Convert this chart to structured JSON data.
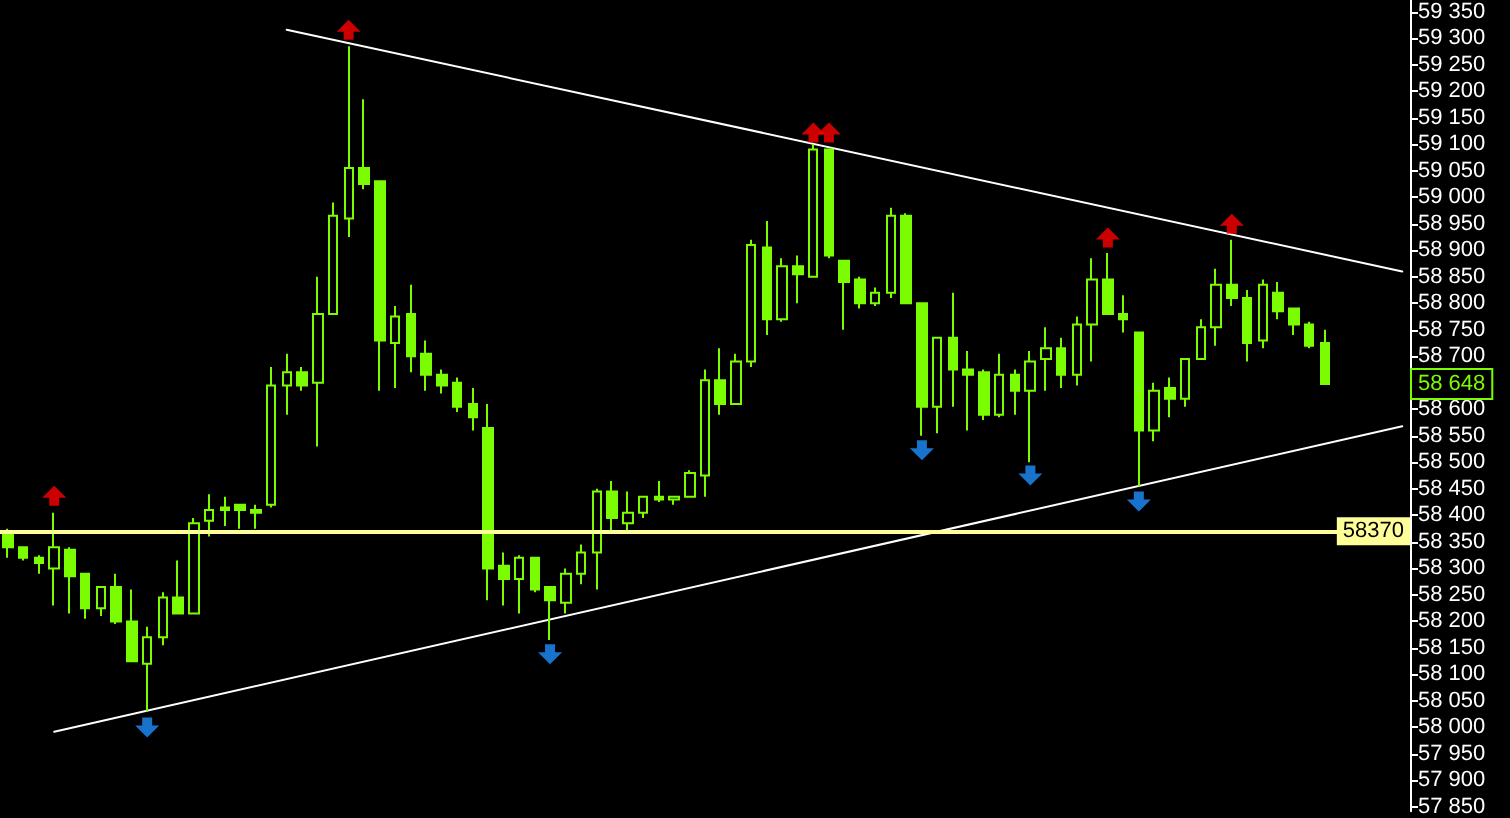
{
  "chart_data": {
    "type": "candlestick",
    "color": "#7cfc00",
    "categories": [
      null,
      null,
      null,
      null,
      null,
      null,
      null,
      null,
      null,
      null,
      null,
      null,
      null,
      null,
      null,
      null,
      null,
      null,
      null,
      null,
      null,
      null,
      null,
      null,
      null,
      null,
      null,
      null,
      null,
      null,
      null,
      null,
      null,
      null,
      null,
      null,
      null,
      null,
      null,
      null,
      null,
      null,
      null,
      null,
      null,
      null,
      null,
      null,
      null,
      null,
      null,
      null,
      null,
      null,
      null,
      null,
      null,
      null,
      null,
      null,
      null,
      null,
      null,
      null,
      null,
      null,
      null,
      null,
      null,
      null,
      null,
      null,
      null,
      null,
      null,
      null,
      null,
      null,
      null,
      null,
      null,
      null,
      null,
      null,
      null,
      null,
      null,
      null,
      null,
      null,
      null
    ],
    "ohlc": [
      [
        58370,
        58375,
        58320,
        58340
      ],
      [
        58340,
        58340,
        58315,
        58320
      ],
      [
        58320,
        58325,
        58290,
        58310
      ],
      [
        58300,
        58405,
        58230,
        58340
      ],
      [
        58335,
        58340,
        58215,
        58285
      ],
      [
        58290,
        58290,
        58205,
        58225
      ],
      [
        58225,
        58265,
        58210,
        58265
      ],
      [
        58265,
        58290,
        58195,
        58200
      ],
      [
        58200,
        58260,
        58125,
        58125
      ],
      [
        58120,
        58190,
        58030,
        58170
      ],
      [
        58170,
        58255,
        58155,
        58245
      ],
      [
        58245,
        58315,
        58215,
        58215
      ],
      [
        58215,
        58395,
        58215,
        58385
      ],
      [
        58390,
        58440,
        58360,
        58410
      ],
      [
        58415,
        58435,
        58380,
        58410
      ],
      [
        58420,
        58420,
        58375,
        58410
      ],
      [
        58410,
        58420,
        58375,
        58405
      ],
      [
        58420,
        58680,
        58415,
        58645
      ],
      [
        58645,
        58705,
        58590,
        58670
      ],
      [
        58670,
        58680,
        58635,
        58645
      ],
      [
        58650,
        58850,
        58530,
        58780
      ],
      [
        58780,
        58990,
        58780,
        58965
      ],
      [
        58960,
        59285,
        58925,
        59055
      ],
      [
        59055,
        59185,
        59015,
        59025
      ],
      [
        59030,
        59030,
        58635,
        58730
      ],
      [
        58725,
        58795,
        58640,
        58775
      ],
      [
        58780,
        58835,
        58670,
        58700
      ],
      [
        58705,
        58730,
        58635,
        58665
      ],
      [
        58665,
        58675,
        58630,
        58645
      ],
      [
        58650,
        58660,
        58595,
        58605
      ],
      [
        58610,
        58640,
        58560,
        58585
      ],
      [
        58565,
        58610,
        58240,
        58300
      ],
      [
        58305,
        58330,
        58230,
        58280
      ],
      [
        58280,
        58325,
        58215,
        58320
      ],
      [
        58320,
        58320,
        58255,
        58260
      ],
      [
        58265,
        58265,
        58165,
        58240
      ],
      [
        58235,
        58300,
        58215,
        58290
      ],
      [
        58290,
        58345,
        58270,
        58330
      ],
      [
        58330,
        58450,
        58260,
        58445
      ],
      [
        58445,
        58465,
        58370,
        58395
      ],
      [
        58385,
        58445,
        58370,
        58405
      ],
      [
        58405,
        58435,
        58395,
        58435
      ],
      [
        58435,
        58465,
        58425,
        58430
      ],
      [
        58430,
        58435,
        58420,
        58435
      ],
      [
        58435,
        58485,
        58435,
        58480
      ],
      [
        58475,
        58675,
        58435,
        58655
      ],
      [
        58655,
        58715,
        58590,
        58610
      ],
      [
        58610,
        58705,
        58610,
        58690
      ],
      [
        58690,
        58920,
        58680,
        58910
      ],
      [
        58905,
        58955,
        58740,
        58770
      ],
      [
        58770,
        58885,
        58765,
        58870
      ],
      [
        58870,
        58890,
        58800,
        58855
      ],
      [
        58850,
        59100,
        58850,
        59090
      ],
      [
        59090,
        59090,
        58885,
        58890
      ],
      [
        58880,
        58880,
        58750,
        58840
      ],
      [
        58845,
        58850,
        58790,
        58800
      ],
      [
        58800,
        58830,
        58795,
        58820
      ],
      [
        58820,
        58980,
        58810,
        58965
      ],
      [
        58965,
        58970,
        58800,
        58800
      ],
      [
        58800,
        58800,
        58550,
        58605
      ],
      [
        58605,
        58735,
        58555,
        58735
      ],
      [
        58735,
        58820,
        58605,
        58675
      ],
      [
        58675,
        58710,
        58560,
        58665
      ],
      [
        58670,
        58675,
        58580,
        58590
      ],
      [
        58590,
        58705,
        58585,
        58665
      ],
      [
        58665,
        58675,
        58590,
        58635
      ],
      [
        58635,
        58710,
        58500,
        58690
      ],
      [
        58695,
        58755,
        58635,
        58715
      ],
      [
        58715,
        58735,
        58640,
        58665
      ],
      [
        58665,
        58775,
        58645,
        58760
      ],
      [
        58760,
        58885,
        58690,
        58845
      ],
      [
        58845,
        58895,
        58780,
        58780
      ],
      [
        58780,
        58815,
        58745,
        58770
      ],
      [
        58745,
        58745,
        58455,
        58560
      ],
      [
        58560,
        58650,
        58540,
        58635
      ],
      [
        58640,
        58660,
        58585,
        58620
      ],
      [
        58620,
        58695,
        58605,
        58695
      ],
      [
        58695,
        58770,
        58695,
        58755
      ],
      [
        58755,
        58865,
        58720,
        58835
      ],
      [
        58835,
        58920,
        58795,
        58810
      ],
      [
        58810,
        58825,
        58690,
        58725
      ],
      [
        58730,
        58845,
        58715,
        58835
      ],
      [
        58820,
        58840,
        58770,
        58785
      ],
      [
        58790,
        58790,
        58740,
        58760
      ],
      [
        58760,
        58765,
        58715,
        58720
      ],
      [
        58725,
        58750,
        58648,
        58648
      ],
      null,
      null,
      null,
      null,
      null
    ],
    "series": [
      {
        "type": "line",
        "color": "#ffffff",
        "marker": "none",
        "values": [
          null,
          null,
          null,
          null,
          null,
          null,
          null,
          null,
          null,
          null,
          null,
          null,
          null,
          null,
          null,
          null,
          null,
          null,
          59316,
          null,
          null,
          null,
          null,
          null,
          null,
          null,
          null,
          null,
          null,
          null,
          null,
          null,
          null,
          null,
          null,
          null,
          null,
          null,
          null,
          null,
          null,
          null,
          null,
          null,
          null,
          null,
          null,
          null,
          null,
          null,
          null,
          null,
          null,
          null,
          null,
          null,
          null,
          null,
          null,
          null,
          null,
          null,
          null,
          null,
          null,
          null,
          null,
          null,
          null,
          null,
          null,
          null,
          null,
          null,
          null,
          null,
          null,
          null,
          null,
          null,
          null,
          null,
          null,
          null,
          null,
          null,
          null,
          null,
          null,
          null,
          58860
        ]
      },
      {
        "type": "line",
        "color": "#ffffff",
        "marker": "none",
        "values": [
          null,
          null,
          null,
          57992,
          null,
          null,
          null,
          null,
          null,
          null,
          null,
          null,
          null,
          null,
          null,
          null,
          null,
          null,
          null,
          null,
          null,
          null,
          null,
          null,
          null,
          null,
          null,
          null,
          null,
          null,
          null,
          null,
          null,
          null,
          null,
          null,
          null,
          null,
          null,
          null,
          null,
          null,
          null,
          null,
          null,
          null,
          null,
          null,
          null,
          null,
          null,
          null,
          null,
          null,
          null,
          null,
          null,
          null,
          null,
          null,
          null,
          null,
          null,
          null,
          null,
          null,
          null,
          null,
          null,
          null,
          null,
          null,
          null,
          null,
          null,
          null,
          null,
          null,
          null,
          null,
          null,
          null,
          null,
          null,
          null,
          null,
          null,
          null,
          null,
          null,
          58568
        ]
      },
      {
        "type": "scatter",
        "color": "#ff0000",
        "marker": "triangle",
        "values": [
          null,
          null,
          null,
          58437,
          null,
          null,
          null,
          null,
          null,
          null,
          null,
          null,
          null,
          null,
          null,
          null,
          null,
          null,
          null,
          null,
          null,
          null,
          59316,
          null,
          null,
          null,
          null,
          null,
          null,
          null,
          null,
          null,
          null,
          null,
          null,
          null,
          null,
          null,
          null,
          null,
          null,
          null,
          null,
          null,
          null,
          null,
          null,
          null,
          null,
          null,
          null,
          null,
          59122,
          59122,
          null,
          null,
          null,
          null,
          null,
          null,
          null,
          null,
          null,
          null,
          null,
          null,
          null,
          null,
          null,
          null,
          null,
          58924,
          null,
          null,
          null,
          null,
          null,
          null,
          null,
          58950,
          null,
          null,
          null,
          null,
          null,
          null,
          null,
          null,
          null,
          null,
          null
        ]
      },
      {
        "type": "scatter",
        "color": "#1e90ff",
        "marker": "triangle",
        "values": [
          null,
          null,
          null,
          null,
          null,
          null,
          null,
          null,
          null,
          58000,
          null,
          null,
          null,
          null,
          null,
          null,
          null,
          null,
          null,
          null,
          null,
          null,
          null,
          null,
          null,
          null,
          null,
          null,
          null,
          null,
          null,
          null,
          null,
          null,
          null,
          58138,
          null,
          null,
          null,
          null,
          null,
          null,
          null,
          null,
          null,
          null,
          null,
          null,
          null,
          null,
          null,
          null,
          null,
          null,
          null,
          null,
          null,
          null,
          null,
          58523,
          null,
          null,
          null,
          null,
          null,
          null,
          58475,
          null,
          null,
          null,
          null,
          null,
          null,
          58426,
          null,
          null,
          null,
          null,
          null,
          null,
          null,
          null,
          null,
          null,
          null,
          null,
          null,
          null,
          null,
          null,
          null
        ]
      }
    ],
    "ylim": [
      57842,
      59372
    ],
    "yticks": [
      {
        "value": 57850,
        "label": "57 850"
      },
      {
        "value": 57900,
        "label": "57 900"
      },
      {
        "value": 57950,
        "label": "57 950"
      },
      {
        "value": 58000,
        "label": "58 000"
      },
      {
        "value": 58050,
        "label": "58 050"
      },
      {
        "value": 58100,
        "label": "58 100"
      },
      {
        "value": 58150,
        "label": "58 150"
      },
      {
        "value": 58200,
        "label": "58 200"
      },
      {
        "value": 58250,
        "label": "58 250"
      },
      {
        "value": 58300,
        "label": "58 300"
      },
      {
        "value": 58350,
        "label": "58 350"
      },
      {
        "value": 58400,
        "label": "58 400"
      },
      {
        "value": 58450,
        "label": "58 450"
      },
      {
        "value": 58500,
        "label": "58 500"
      },
      {
        "value": 58550,
        "label": "58 550"
      },
      {
        "value": 58600,
        "label": "58 600"
      },
      {
        "value": 58650,
        "label": null
      },
      {
        "value": 58700,
        "label": "58 700"
      },
      {
        "value": 58750,
        "label": "58 750"
      },
      {
        "value": 58800,
        "label": "58 800"
      },
      {
        "value": 58850,
        "label": "58 850"
      },
      {
        "value": 58900,
        "label": "58 900"
      },
      {
        "value": 58950,
        "label": "58 950"
      },
      {
        "value": 59000,
        "label": "59 000"
      },
      {
        "value": 59050,
        "label": "59 050"
      },
      {
        "value": 59100,
        "label": "59 100"
      },
      {
        "value": 59150,
        "label": "59 150"
      },
      {
        "value": 59200,
        "label": "59 200"
      },
      {
        "value": 59250,
        "label": "59 250"
      },
      {
        "value": 59300,
        "label": "59 300"
      },
      {
        "value": 59350,
        "label": "59 350"
      }
    ],
    "tick_labels": "y",
    "ref_lines": [
      {
        "axis": "y",
        "value": 58370,
        "label": "58370",
        "color": "#ffff99"
      }
    ],
    "annotations": [
      {
        "text": "58 648",
        "y": 58648
      }
    ]
  }
}
